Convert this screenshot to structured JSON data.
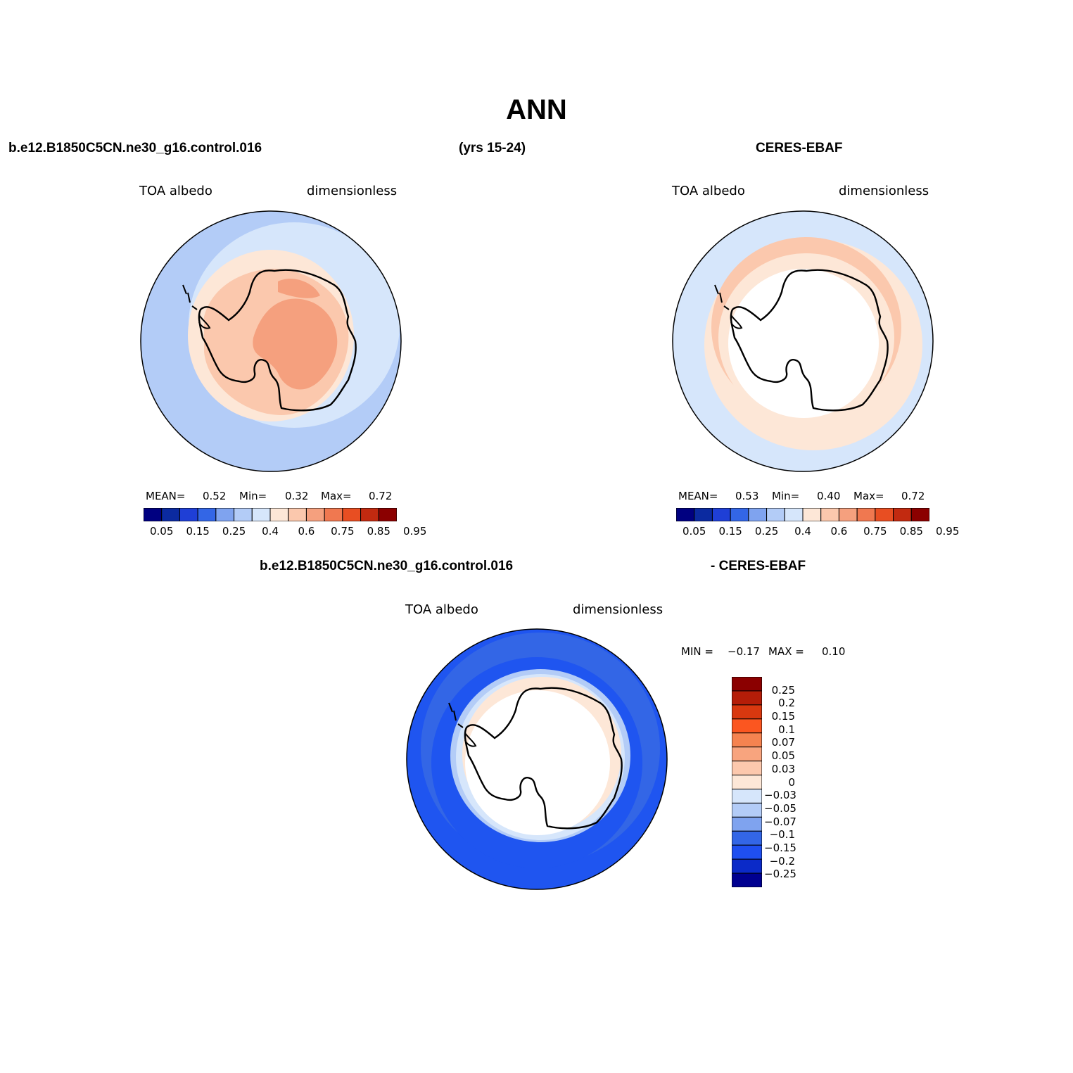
{
  "title": "ANN",
  "header": {
    "case_name": "b.e12.B1850C5CN.ne30_g16.control.016",
    "years": "(yrs 15-24)",
    "obs_name": "CERES-EBAF"
  },
  "diff_header": {
    "case_name": "b.e12.B1850C5CN.ne30_g16.control.016",
    "obs_name": "- CERES-EBAF"
  },
  "panels": [
    {
      "id": "model",
      "variable": "TOA albedo",
      "units": "dimensionless",
      "stats": {
        "mean_label": "MEAN=",
        "mean": "0.52",
        "min_label": "Min=",
        "min": "0.32",
        "max_label": "Max=",
        "max": "0.72"
      }
    },
    {
      "id": "obs",
      "variable": "TOA albedo",
      "units": "dimensionless",
      "stats": {
        "mean_label": "MEAN=",
        "mean": "0.53",
        "min_label": "Min=",
        "min": "0.40",
        "max_label": "Max=",
        "max": "0.72"
      }
    },
    {
      "id": "diff",
      "variable": "TOA albedo",
      "units": "dimensionless",
      "stats": {
        "min_label": "MIN =",
        "min": "−0.17",
        "max_label": "MAX =",
        "max": "0.10"
      }
    }
  ],
  "colorbar_abs": {
    "colors": [
      "#000080",
      "#0b2aa0",
      "#1f3fd6",
      "#3366e6",
      "#7fa3ef",
      "#b3ccf7",
      "#d6e6fb",
      "#fde7d7",
      "#fbc8ad",
      "#f5a07e",
      "#f07850",
      "#e84e22",
      "#c22a10",
      "#8b0000"
    ],
    "labels": [
      "0.05",
      "0.15",
      "0.25",
      "0.4",
      "0.6",
      "0.75",
      "0.85",
      "0.95"
    ]
  },
  "colorbar_diff": {
    "colors": [
      "#8b0000",
      "#b51d08",
      "#d9380f",
      "#fb5620",
      "#f58350",
      "#f8a47e",
      "#fcc8ad",
      "#fde7d7",
      "#d6e6fb",
      "#b3ccf7",
      "#7fa3ef",
      "#3366e6",
      "#1f4ff0",
      "#0b2ac8",
      "#000090"
    ],
    "labels": [
      "0.25",
      "0.2",
      "0.15",
      "0.1",
      "0.07",
      "0.05",
      "0.03",
      "0",
      "−0.03",
      "−0.05",
      "−0.07",
      "−0.1",
      "−0.15",
      "−0.2",
      "−0.25"
    ]
  },
  "map_colors": {
    "outer_blue": "#b3ccf7",
    "light_blue": "#d6e6fb",
    "pale_peach": "#fde7d7",
    "peach": "#fbc8ad",
    "salmon": "#f5a07e",
    "diff_blue": "#1f55f0",
    "diff_mid_blue": "#3366e6",
    "white": "#ffffff"
  }
}
